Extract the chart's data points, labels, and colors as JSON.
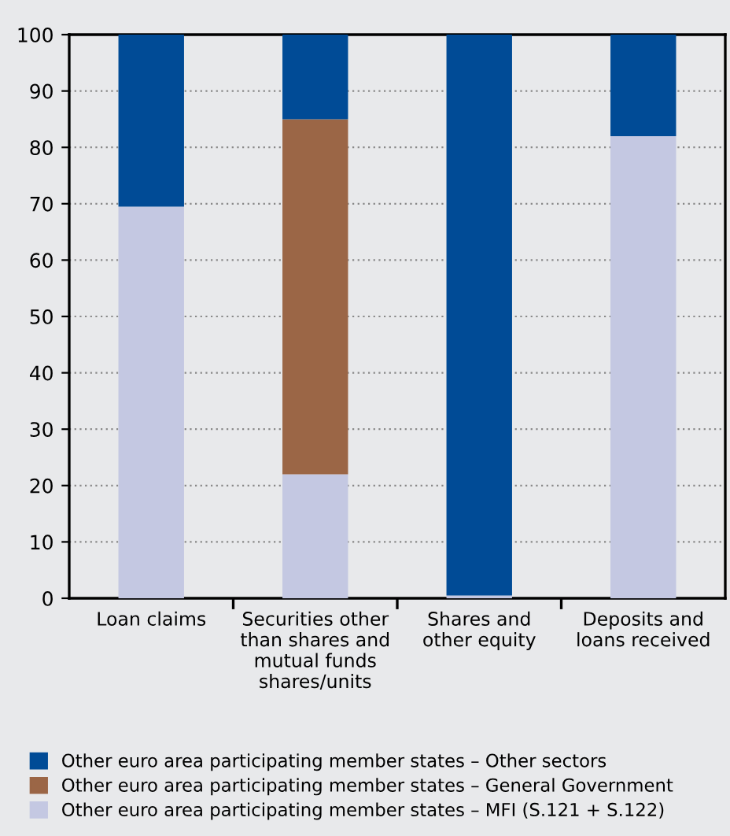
{
  "chart_data": {
    "type": "bar",
    "stacked": true,
    "categories": [
      "Loan claims",
      "Securities other\nthan shares and\nmutual funds\nshares/units",
      "Shares and\nother equity",
      "Deposits and\nloans received"
    ],
    "series": [
      {
        "name": "Other euro area participating member states – MFI (S.121 + S.122)",
        "color": "#c4c8e2",
        "values": [
          69.5,
          22,
          0.5,
          82
        ]
      },
      {
        "name": "Other euro area participating member states – General Government",
        "color": "#9b6646",
        "values": [
          0,
          63,
          0,
          0
        ]
      },
      {
        "name": "Other euro area participating member states – Other sectors",
        "color": "#004b96",
        "values": [
          30.5,
          15,
          99.5,
          18
        ]
      }
    ],
    "ylim": [
      0,
      100
    ],
    "yticks": [
      0,
      10,
      20,
      30,
      40,
      50,
      60,
      70,
      80,
      90,
      100
    ],
    "grid": "y",
    "legend": "bottom"
  }
}
